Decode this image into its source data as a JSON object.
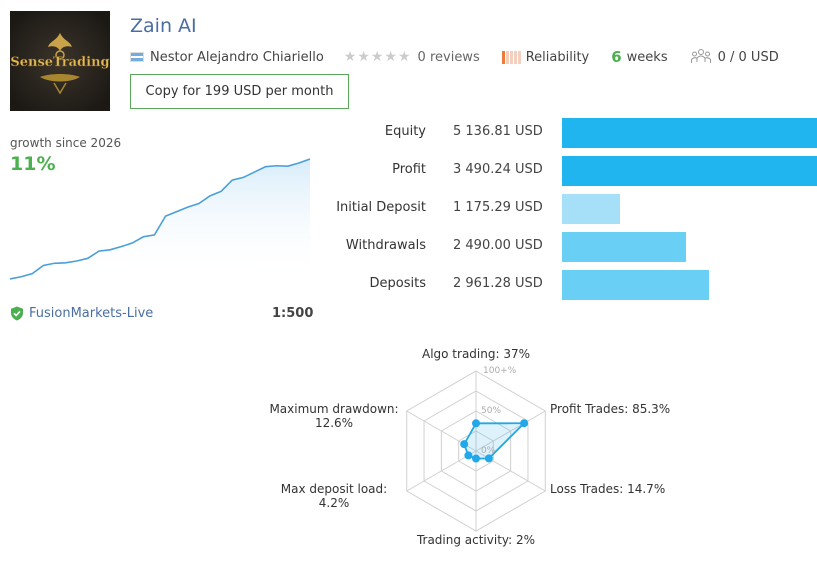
{
  "signal": {
    "title": "Zain AI",
    "author": "Nestor Alejandro Chiariello",
    "logo_text": "SenseTrading",
    "stars_glyph": "★★★★★",
    "reviews": "0 reviews",
    "reliability_label": "Reliability",
    "reliability_level": 0.1,
    "weeks_number": "6",
    "weeks_label": "weeks",
    "subscribers": "0 / 0 USD",
    "copy_button": "Copy for 199 USD per month"
  },
  "growth": {
    "label": "growth since 2026",
    "value": "11%",
    "line_color": "#4a9fd8",
    "series": [
      0,
      0.5,
      1.2,
      3,
      3.5,
      3.6,
      4,
      4.6,
      6.2,
      6.5,
      7.2,
      8,
      9.4,
      9.8,
      14,
      15,
      16,
      16.8,
      18.5,
      19.5,
      22,
      22.6,
      23.8,
      25,
      25.2,
      25.1,
      25.8,
      26.7
    ]
  },
  "broker": {
    "name": "FusionMarkets-Live",
    "leverage": "1:500"
  },
  "stats": [
    {
      "label": "Equity",
      "value": "5 136.81 USD",
      "amount": 5136.81,
      "color": "#21b5f0"
    },
    {
      "label": "Profit",
      "value": "3 490.24 USD",
      "amount": 3490.24,
      "color": "#21b5f0",
      "fill": 1.0
    },
    {
      "label": "Initial Deposit",
      "value": "1 175.29 USD",
      "amount": 1175.29,
      "color": "#a6e0f8"
    },
    {
      "label": "Withdrawals",
      "value": "2 490.00 USD",
      "amount": 2490.0,
      "color": "#6acff5"
    },
    {
      "label": "Deposits",
      "value": "2 961.28 USD",
      "amount": 2961.28,
      "color": "#6acff5"
    }
  ],
  "radar": {
    "axes": [
      {
        "label": "Algo trading: 37%",
        "value": 37
      },
      {
        "label": "Profit Trades: 85.3%",
        "value": 85.3
      },
      {
        "label": "Loss Trades: 14.7%",
        "value": 14.7
      },
      {
        "label": "Trading activity: 2%",
        "value": 2
      },
      {
        "label": "Max deposit load:\n4.2%",
        "value": 4.2
      },
      {
        "label": "Maximum drawdown:\n12.6%",
        "value": 12.6
      }
    ],
    "ticks": [
      "100+%",
      "50%",
      "0%"
    ],
    "color": "#21a8e8"
  }
}
